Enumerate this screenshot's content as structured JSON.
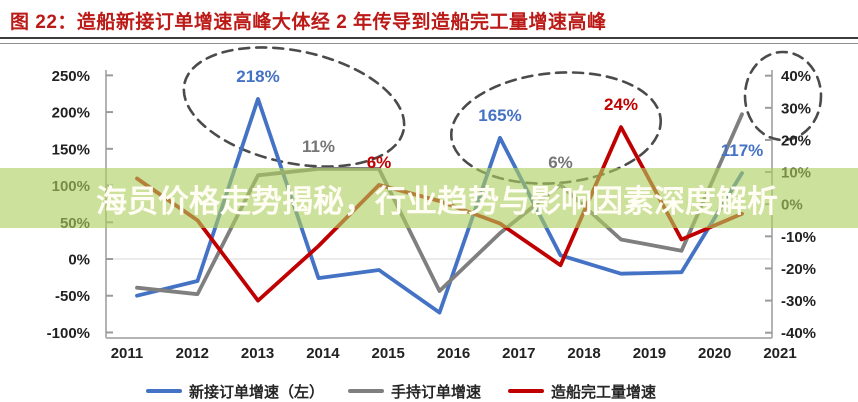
{
  "title": {
    "text": "图 22：造船新接订单增速高峰大体经 2 年传导到造船完工量增速高峰"
  },
  "overlay": {
    "text": "海员价格走势揭秘，行业趋势与影响因素深度解析"
  },
  "chart_data": {
    "type": "line",
    "categories": [
      "2011",
      "2012",
      "2013",
      "2014",
      "2015",
      "2016",
      "2017",
      "2018",
      "2019",
      "2020",
      "2021"
    ],
    "series": [
      {
        "name": "新接订单增速（左）",
        "axis": "left",
        "color": "#4472C4",
        "values": [
          -50,
          -30,
          218,
          -26,
          -15,
          -73,
          165,
          5,
          -20,
          -18,
          117
        ]
      },
      {
        "name": "手持订单增速",
        "axis": "right",
        "color": "#7F7F7F",
        "values": [
          -26,
          -28,
          9,
          11,
          11,
          -27,
          -9,
          6,
          -11,
          -14.5,
          28
        ]
      },
      {
        "name": "造船完工量增速",
        "axis": "right",
        "color": "#C00000",
        "values": [
          8,
          -5,
          -30,
          -13,
          6,
          1,
          -6,
          -19,
          24,
          -11,
          -3
        ]
      }
    ],
    "left_axis": {
      "ticks": [
        "250%",
        "200%",
        "150%",
        "100%",
        "50%",
        "0%",
        "-50%",
        "-100%"
      ],
      "range": [
        -100,
        250
      ]
    },
    "right_axis": {
      "ticks": [
        "40%",
        "30%",
        "20%",
        "10%",
        "0%",
        "-10%",
        "-20%",
        "-30%",
        "-40%"
      ],
      "range": [
        -40,
        40
      ]
    },
    "data_labels": [
      {
        "text": "218%",
        "series": 0,
        "year_index": 2,
        "color": "#4472C4"
      },
      {
        "text": "11%",
        "series": 1,
        "year_index": 3,
        "color": "#767676"
      },
      {
        "text": "6%",
        "series": 2,
        "year_index": 4,
        "color": "#C00000"
      },
      {
        "text": "165%",
        "series": 0,
        "year_index": 6,
        "color": "#4472C4"
      },
      {
        "text": "6%",
        "series": 1,
        "year_index": 7,
        "color": "#767676"
      },
      {
        "text": "24%",
        "series": 2,
        "year_index": 8,
        "color": "#C00000"
      },
      {
        "text": "117%",
        "series": 0,
        "year_index": 10,
        "color": "#4472C4"
      }
    ],
    "legend": [
      "新接订单增速（左）",
      "手持订单增速",
      "造船完工量增速"
    ],
    "legend_position": "bottom",
    "grid": "zero-line-only",
    "annotations": [
      "dashed-ellipse-2012-2014-peak",
      "dashed-ellipse-2017-2019-peak",
      "dashed-ellipse-2021-peak"
    ]
  },
  "colors": {
    "banner": "#addl-see-css",
    "title_red": "#bb1a17",
    "accent_blue": "#4472C4",
    "accent_gray": "#7F7F7F",
    "accent_red": "#C00000"
  }
}
